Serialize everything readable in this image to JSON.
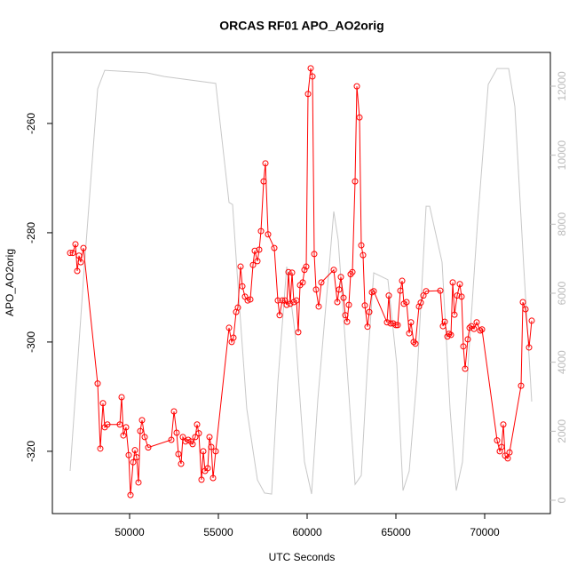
{
  "chart_data": {
    "type": "line",
    "title": "ORCAS RF01 APO_AO2orig",
    "x_label": "UTC Seconds",
    "y_label": "APO_AO2orig",
    "xlim": [
      45650,
      73700
    ],
    "xticks": [
      50000,
      55000,
      60000,
      65000,
      70000
    ],
    "ylim": [
      -331.4,
      -247
    ],
    "yticks": [
      -320,
      -300,
      -280,
      -260
    ],
    "y2lim": [
      -386,
      12978
    ],
    "y2ticks": [
      0,
      2000,
      4000,
      6000,
      8000,
      10000,
      12000
    ],
    "series": [
      {
        "color": "#ff0000",
        "markers": true,
        "x": [
          46650,
          46800,
          46950,
          47050,
          47150,
          47250,
          47400,
          48200,
          48350,
          48500,
          48600,
          48750,
          49450,
          49550,
          49650,
          49800,
          49950,
          50050,
          50200,
          50300,
          50400,
          50500,
          50600,
          50700,
          50850,
          51050,
          52350,
          52500,
          52650,
          52750,
          52900,
          53000,
          53150,
          53300,
          53450,
          53550,
          53700,
          53800,
          53900,
          54050,
          54150,
          54250,
          54400,
          54500,
          54600,
          54700,
          54850,
          55600,
          55750,
          55850,
          56000,
          56100,
          56250,
          56350,
          56500,
          56650,
          56800,
          56950,
          57050,
          57200,
          57300,
          57400,
          57550,
          57650,
          57800,
          58150,
          58350,
          58450,
          58600,
          58750,
          58850,
          58950,
          59050,
          59150,
          59250,
          59400,
          59500,
          59600,
          59750,
          59850,
          59950,
          60050,
          60200,
          60300,
          60400,
          60500,
          60650,
          60800,
          61500,
          61700,
          61800,
          61900,
          62050,
          62150,
          62250,
          62350,
          62450,
          62550,
          62700,
          62800,
          62950,
          63050,
          63150,
          63250,
          63400,
          63500,
          63650,
          63750,
          64500,
          64600,
          64700,
          64850,
          65000,
          65100,
          65250,
          65350,
          65450,
          65600,
          65750,
          65850,
          66000,
          66100,
          66300,
          66400,
          66550,
          66700,
          67500,
          67650,
          67750,
          67900,
          68000,
          68100,
          68200,
          68300,
          68450,
          68600,
          68700,
          68800,
          68900,
          69050,
          69150,
          69250,
          69400,
          69550,
          69750,
          69850,
          70700,
          70850,
          70950,
          71050,
          71150,
          71300,
          71400,
          72050,
          72150,
          72300,
          72500,
          72650
        ],
        "values": [
          -283.7,
          -283.7,
          -282.1,
          -287.0,
          -284.2,
          -285.4,
          -282.8,
          -307.6,
          -319.5,
          -311.2,
          -315.6,
          -315.1,
          -315.1,
          -310.1,
          -317.1,
          -315.6,
          -320.7,
          -328.0,
          -322.0,
          -319.8,
          -321.1,
          -325.7,
          -316.3,
          -314.3,
          -317.4,
          -319.3,
          -317.9,
          -312.7,
          -316.6,
          -320.5,
          -322.3,
          -317.4,
          -318.2,
          -317.9,
          -318.2,
          -318.7,
          -317.4,
          -315.1,
          -316.7,
          -325.2,
          -320.0,
          -323.6,
          -323.1,
          -317.4,
          -319.2,
          -324.9,
          -320.0,
          -297.4,
          -300.0,
          -299.2,
          -294.5,
          -293.7,
          -286.2,
          -289.8,
          -291.7,
          -292.4,
          -292.2,
          -285.9,
          -283.3,
          -285.2,
          -283.1,
          -279.7,
          -270.6,
          -267.3,
          -280.3,
          -282.8,
          -292.4,
          -295.1,
          -292.4,
          -292.4,
          -293.2,
          -287.2,
          -293.0,
          -287.3,
          -292.7,
          -292.4,
          -298.2,
          -289.6,
          -289.1,
          -286.8,
          -286.2,
          -254.6,
          -249.9,
          -251.4,
          -283.9,
          -290.4,
          -293.5,
          -289.1,
          -286.8,
          -292.7,
          -290.4,
          -288.1,
          -291.9,
          -295.1,
          -296.3,
          -293.2,
          -287.6,
          -287.2,
          -270.6,
          -253.2,
          -258.9,
          -282.3,
          -284.1,
          -293.3,
          -297.2,
          -294.5,
          -290.9,
          -290.7,
          -296.4,
          -291.5,
          -296.6,
          -296.6,
          -296.9,
          -296.9,
          -290.6,
          -288.8,
          -293.0,
          -292.7,
          -298.4,
          -296.4,
          -300.0,
          -300.3,
          -293.5,
          -292.8,
          -291.5,
          -290.7,
          -290.6,
          -297.1,
          -296.3,
          -299.0,
          -298.5,
          -298.7,
          -289.1,
          -295.0,
          -291.5,
          -289.4,
          -291.7,
          -300.8,
          -304.9,
          -299.5,
          -297.4,
          -297.1,
          -297.6,
          -296.4,
          -297.9,
          -297.7,
          -318.0,
          -320.0,
          -319.2,
          -315.1,
          -320.8,
          -321.3,
          -320.2,
          -308.0,
          -292.7,
          -294.0,
          -301.0,
          -296.1
        ]
      },
      {
        "color": "#c8c8c8",
        "axis": "y2",
        "markers": false,
        "x": [
          46650,
          47450,
          48200,
          48600,
          50950,
          51950,
          54850,
          55600,
          55800,
          56100,
          56600,
          57200,
          57600,
          58000,
          58350,
          58850,
          59350,
          59850,
          60250,
          60600,
          61200,
          61500,
          61750,
          62200,
          62700,
          63050,
          63400,
          63750,
          64550,
          65050,
          65400,
          65750,
          66200,
          66700,
          66900,
          67600,
          68050,
          68400,
          68750,
          69100,
          69600,
          70200,
          70700,
          71350,
          71700,
          72200,
          72650
        ],
        "values": [
          850,
          6770,
          11920,
          12460,
          12390,
          12280,
          12080,
          8630,
          8570,
          6260,
          2650,
          590,
          210,
          180,
          3420,
          6770,
          4710,
          1110,
          180,
          2910,
          6510,
          8370,
          7540,
          4200,
          460,
          720,
          3940,
          6590,
          6390,
          3940,
          280,
          850,
          3680,
          8520,
          8520,
          6900,
          2650,
          280,
          1110,
          4200,
          8060,
          12050,
          12510,
          12510,
          11410,
          6770,
          2860
        ]
      }
    ]
  }
}
